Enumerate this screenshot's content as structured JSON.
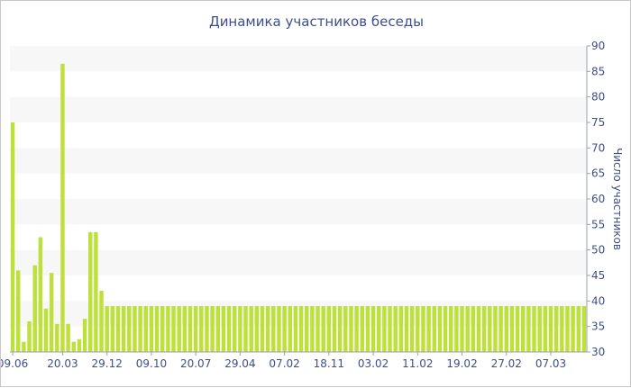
{
  "chart_data": {
    "type": "bar",
    "title": "Динамика участников беседы",
    "xlabel": "",
    "ylabel": "Число участников",
    "ylim": [
      30,
      90
    ],
    "yticks": [
      30,
      35,
      40,
      45,
      50,
      55,
      60,
      65,
      70,
      75,
      80,
      85,
      90
    ],
    "xtick_labels": [
      "09.06",
      "20.03",
      "29.12",
      "09.10",
      "20.07",
      "29.04",
      "07.02",
      "18.11",
      "03.02",
      "11.02",
      "19.02",
      "27.02",
      "07.03"
    ],
    "xtick_positions": [
      0,
      9,
      17,
      25,
      33,
      41,
      49,
      57,
      65,
      73,
      81,
      89,
      97
    ],
    "grid": "horizontal bands",
    "legend": "none",
    "bar_color": "#bde03a",
    "band_color": "#f7f7f7",
    "text_color": "#3e4e8c",
    "values": [
      75,
      46,
      32,
      36,
      47,
      52.5,
      38.5,
      45.5,
      35.5,
      86.5,
      35.5,
      32,
      32.5,
      36.5,
      53.5,
      53.5,
      42,
      39,
      39,
      39,
      39,
      39,
      39,
      39,
      39,
      39,
      39,
      39,
      39,
      39,
      39,
      39,
      39,
      39,
      39,
      39,
      39,
      39,
      39,
      39,
      39,
      39,
      39,
      39,
      39,
      39,
      39,
      39,
      39,
      39,
      39,
      39,
      39,
      39,
      39,
      39,
      39,
      39,
      39,
      39,
      39,
      39,
      39,
      39,
      39,
      39,
      39,
      39,
      39,
      39,
      39,
      39,
      39,
      39,
      39,
      39,
      39,
      39,
      39,
      39,
      39,
      39,
      39,
      39,
      39,
      39,
      39,
      39,
      39,
      39,
      39,
      39,
      39,
      39,
      39,
      39,
      39,
      39,
      39,
      39,
      39,
      39,
      39,
      39
    ]
  }
}
